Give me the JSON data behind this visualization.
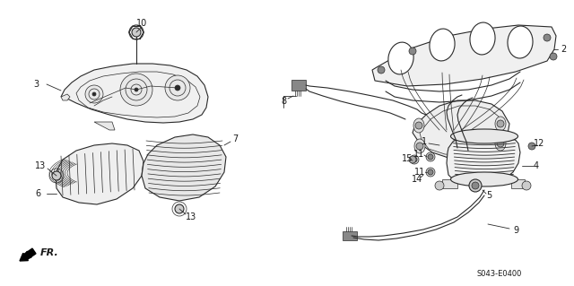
{
  "bg_color": "#ffffff",
  "line_color": "#2a2a2a",
  "label_color": "#1a1a1a",
  "part_code": "S043-E0400",
  "fr_text": "FR.",
  "font_size_labels": 7,
  "font_size_code": 6
}
